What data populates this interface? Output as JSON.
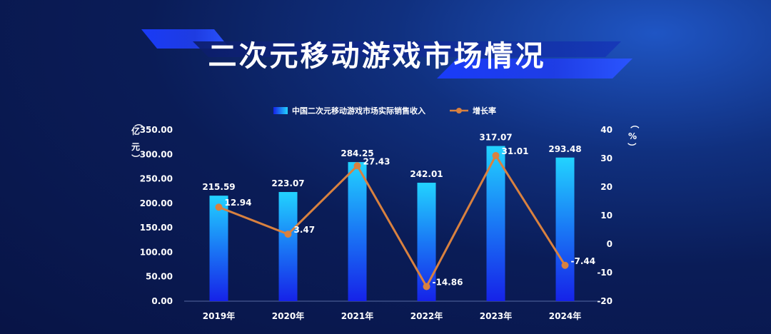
{
  "chart_data": {
    "type": "bar",
    "title": "二次元移动游戏市场情况",
    "categories": [
      "2019年",
      "2020年",
      "2021年",
      "2022年",
      "2023年",
      "2024年"
    ],
    "series": [
      {
        "name": "中国二次元移动游戏市场实际销售收入",
        "type": "bar",
        "axis": "left",
        "values": [
          215.59,
          223.07,
          284.25,
          242.01,
          317.07,
          293.48
        ],
        "labels": [
          "215.59",
          "223.07",
          "284.25",
          "242.01",
          "317.07",
          "293.48"
        ]
      },
      {
        "name": "增长率",
        "type": "line",
        "axis": "right",
        "values": [
          12.94,
          3.47,
          27.43,
          -14.86,
          31.01,
          -7.44
        ],
        "labels": [
          "12.94",
          "3.47",
          "27.43",
          "-14.86",
          "31.01",
          "-7.44"
        ]
      }
    ],
    "y_left": {
      "unit": "（亿元）",
      "ylim": [
        0,
        350
      ],
      "ticks": [
        "0.00",
        "50.00",
        "100.00",
        "150.00",
        "200.00",
        "250.00",
        "300.00",
        "350.00"
      ]
    },
    "y_right": {
      "unit": "（%）",
      "ylim": [
        -20,
        40
      ],
      "ticks": [
        "-20",
        "-10",
        "0",
        "10",
        "20",
        "30",
        "40"
      ]
    },
    "legend_position": "top-center",
    "grid": false
  },
  "colors": {
    "bar_top": "#22d3ff",
    "bar_bottom": "#1622e8",
    "line": "#d9813f",
    "marker": "#d9813f",
    "banner": "#1a3cff"
  }
}
